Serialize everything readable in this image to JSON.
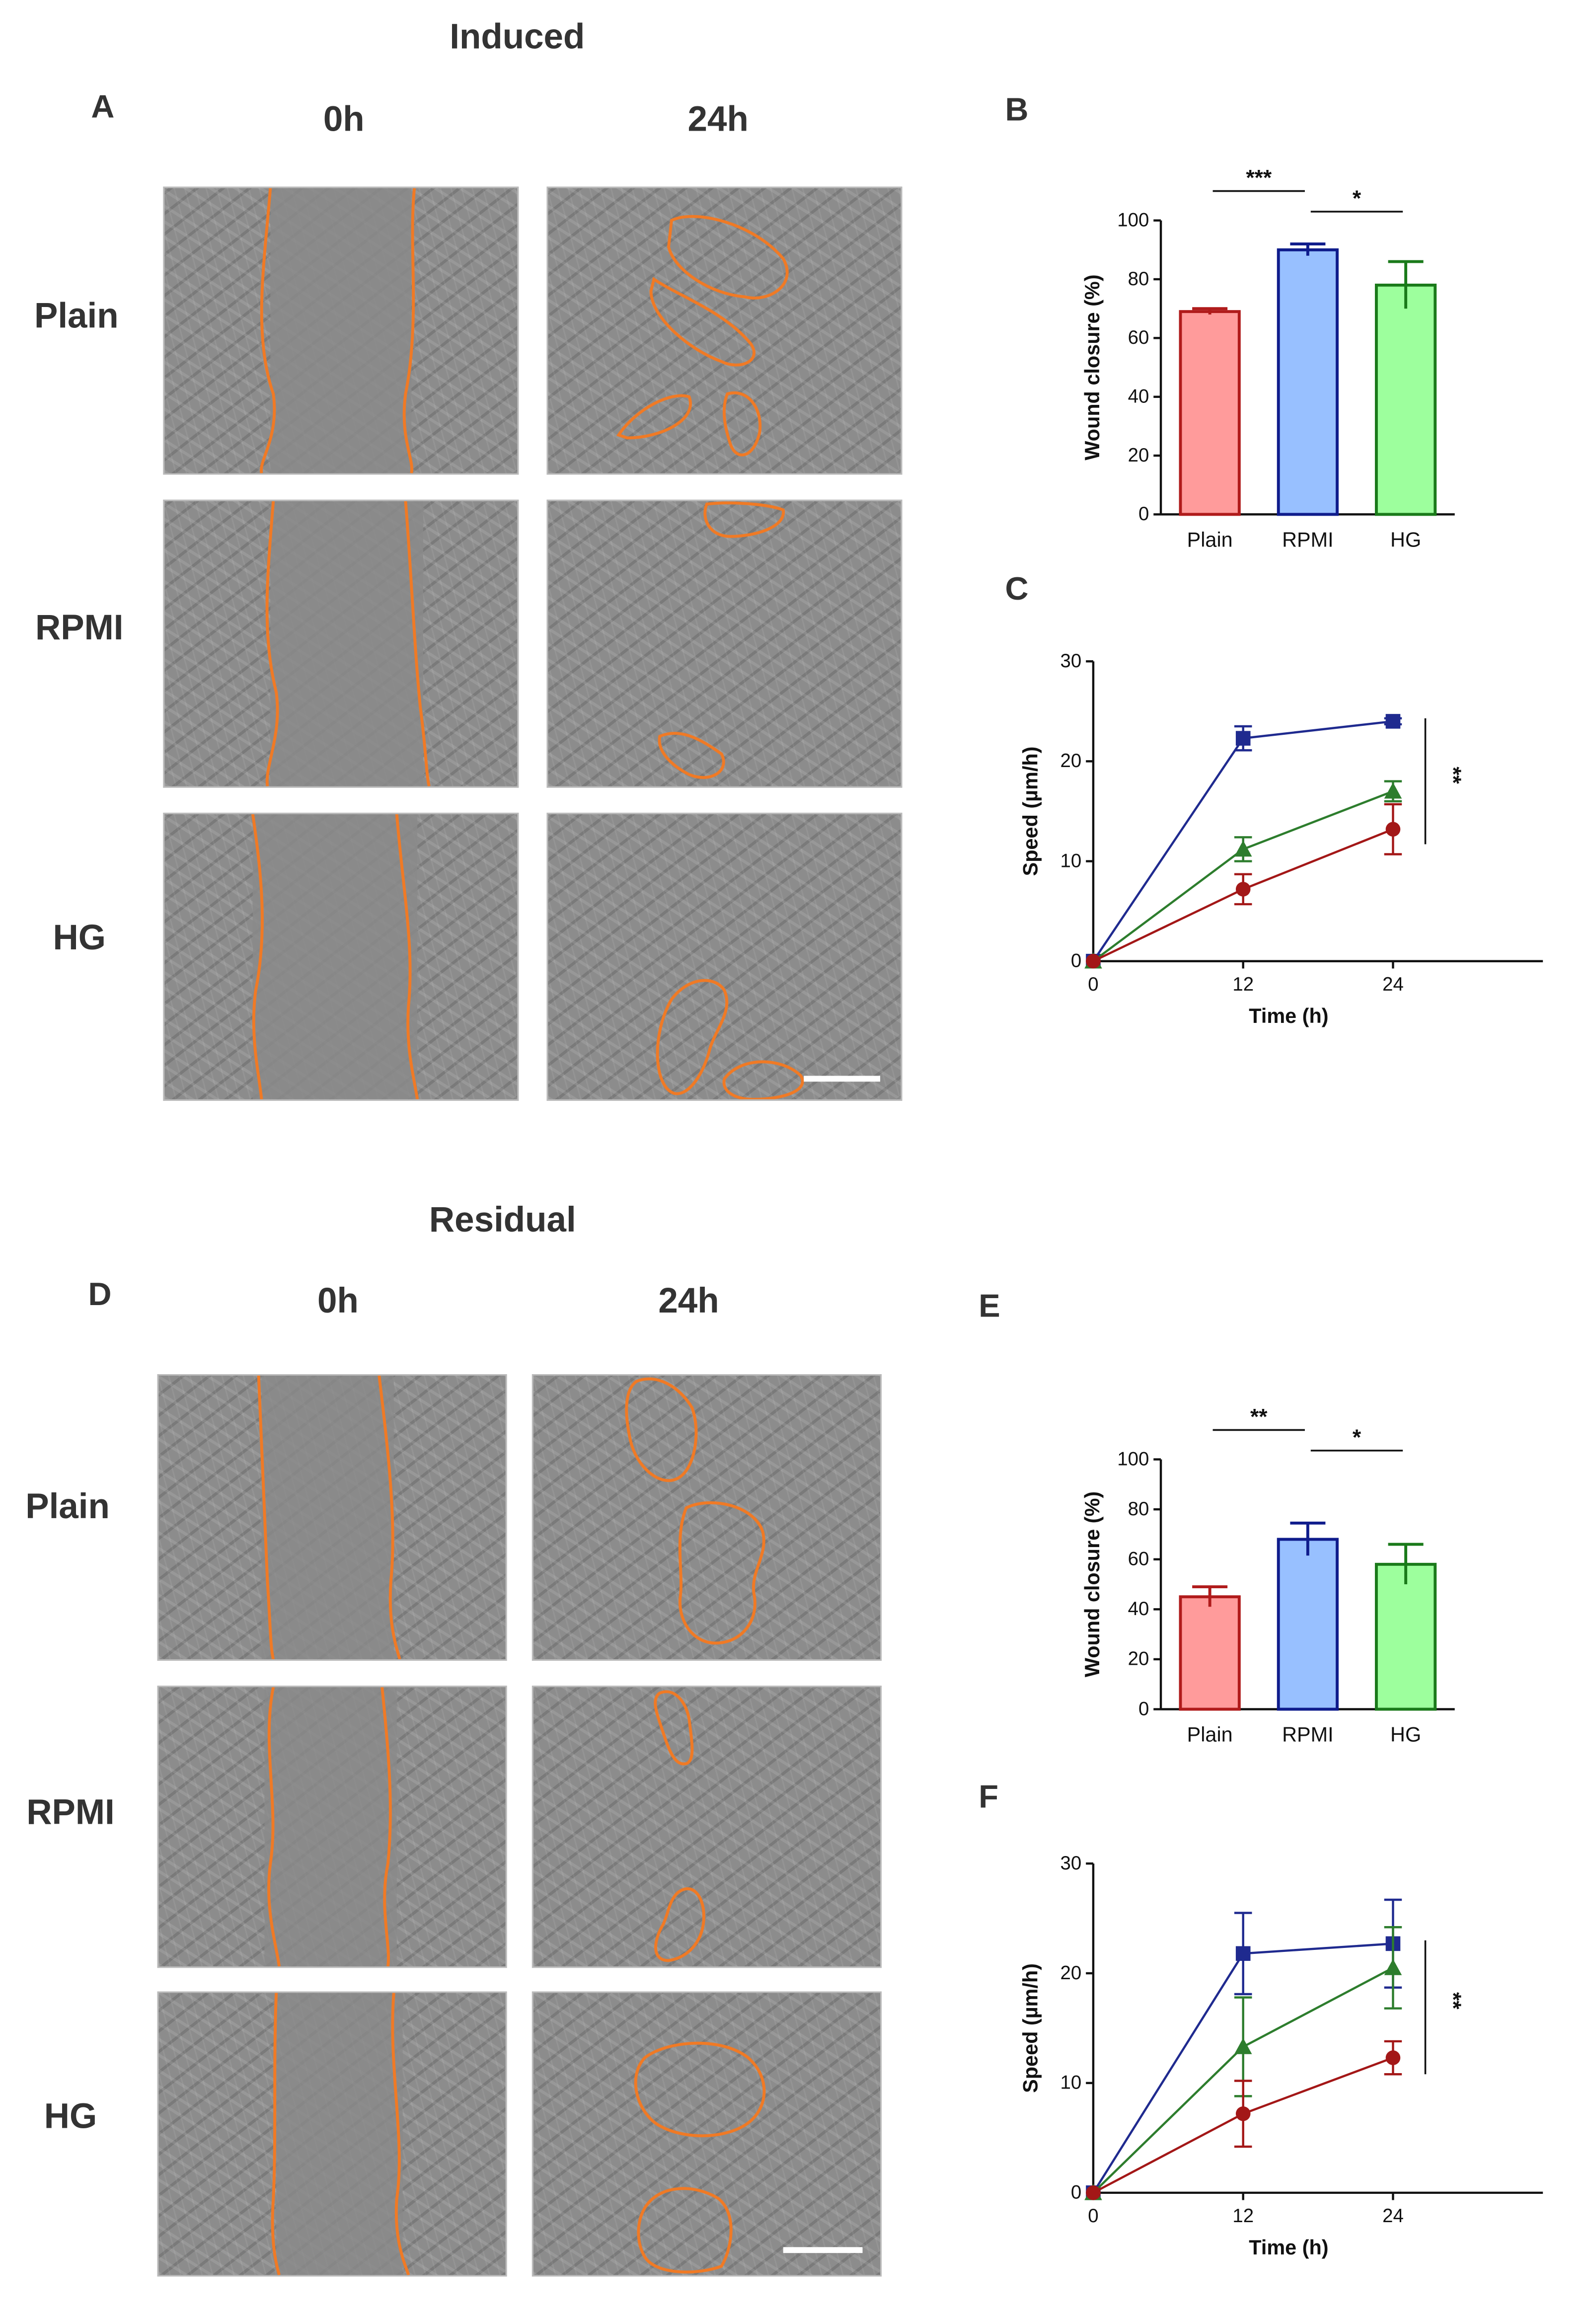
{
  "sections": [
    {
      "title": "Induced",
      "image_letter": "A",
      "time_labels": [
        "0h",
        "24h"
      ],
      "row_labels": [
        "Plain",
        "RPMI",
        "HG"
      ],
      "scale_bar": true
    },
    {
      "title": "Residual",
      "image_letter": "D",
      "time_labels": [
        "0h",
        "24h"
      ],
      "row_labels": [
        "Plain",
        "RPMI",
        "HG"
      ],
      "scale_bar": true
    }
  ],
  "colors": {
    "outline": "#f07a25",
    "plain_fill": "#ff9b9b",
    "plain_edge": "#b01b1b",
    "rpmi_fill": "#98c0ff",
    "rpmi_edge": "#0f1c8c",
    "hg_fill": "#9dff9d",
    "hg_edge": "#1a7a1a",
    "line_blue": "#1f2a8f",
    "line_green": "#2d7d2d",
    "line_red": "#a31717"
  },
  "chart_data": [
    {
      "panel": "B",
      "type": "bar",
      "categories": [
        "Plain",
        "RPMI",
        "HG"
      ],
      "values": [
        69,
        90,
        78
      ],
      "errors": [
        1,
        2,
        8
      ],
      "ylabel": "Wound closure (%)",
      "ylim": [
        0,
        100
      ],
      "yticks": [
        "0",
        "20",
        "40",
        "60",
        "80",
        "100"
      ],
      "significance": [
        {
          "from": 0,
          "to": 1,
          "label": "***"
        },
        {
          "from": 1,
          "to": 2,
          "label": "*"
        }
      ]
    },
    {
      "panel": "C",
      "type": "line",
      "x": [
        0,
        12,
        24
      ],
      "xticks": [
        "0",
        "12",
        "24"
      ],
      "xlabel": "Time (h)",
      "ylabel": "Speed (µm/h)",
      "ylim": [
        0,
        30
      ],
      "yticks": [
        "0",
        "10",
        "20",
        "30"
      ],
      "series": [
        {
          "values": [
            0,
            22.3,
            24
          ],
          "errors": [
            0,
            1.2,
            0.3
          ],
          "marker": "square",
          "color": "#1f2a8f"
        },
        {
          "values": [
            0,
            11.2,
            17
          ],
          "errors": [
            0,
            1.2,
            1
          ],
          "marker": "triangle",
          "color": "#2d7d2d"
        },
        {
          "values": [
            0,
            7.2,
            13.2
          ],
          "errors": [
            0,
            1.5,
            2.5
          ],
          "marker": "circle",
          "color": "#a31717"
        }
      ],
      "significance_label": "**"
    },
    {
      "panel": "E",
      "type": "bar",
      "categories": [
        "Plain",
        "RPMI",
        "HG"
      ],
      "values": [
        45,
        68,
        58
      ],
      "errors": [
        4,
        6.5,
        8
      ],
      "ylabel": "Wound closure (%)",
      "ylim": [
        0,
        100
      ],
      "yticks": [
        "0",
        "20",
        "40",
        "60",
        "80",
        "100"
      ],
      "significance": [
        {
          "from": 0,
          "to": 1,
          "label": "**"
        },
        {
          "from": 1,
          "to": 2,
          "label": "*"
        }
      ]
    },
    {
      "panel": "F",
      "type": "line",
      "x": [
        0,
        12,
        24
      ],
      "xticks": [
        "0",
        "12",
        "24"
      ],
      "xlabel": "Time (h)",
      "ylabel": "Speed (µm/h)",
      "ylim": [
        0,
        30
      ],
      "yticks": [
        "0",
        "10",
        "20",
        "30"
      ],
      "series": [
        {
          "values": [
            0,
            21.8,
            22.7
          ],
          "errors": [
            0,
            3.7,
            4
          ],
          "marker": "square",
          "color": "#1f2a8f"
        },
        {
          "values": [
            0,
            13.3,
            20.5
          ],
          "errors": [
            0,
            4.5,
            3.7
          ],
          "marker": "triangle",
          "color": "#2d7d2d"
        },
        {
          "values": [
            0,
            7.2,
            12.3
          ],
          "errors": [
            0,
            3,
            1.5
          ],
          "marker": "circle",
          "color": "#a31717"
        }
      ],
      "significance_label": "**"
    }
  ]
}
